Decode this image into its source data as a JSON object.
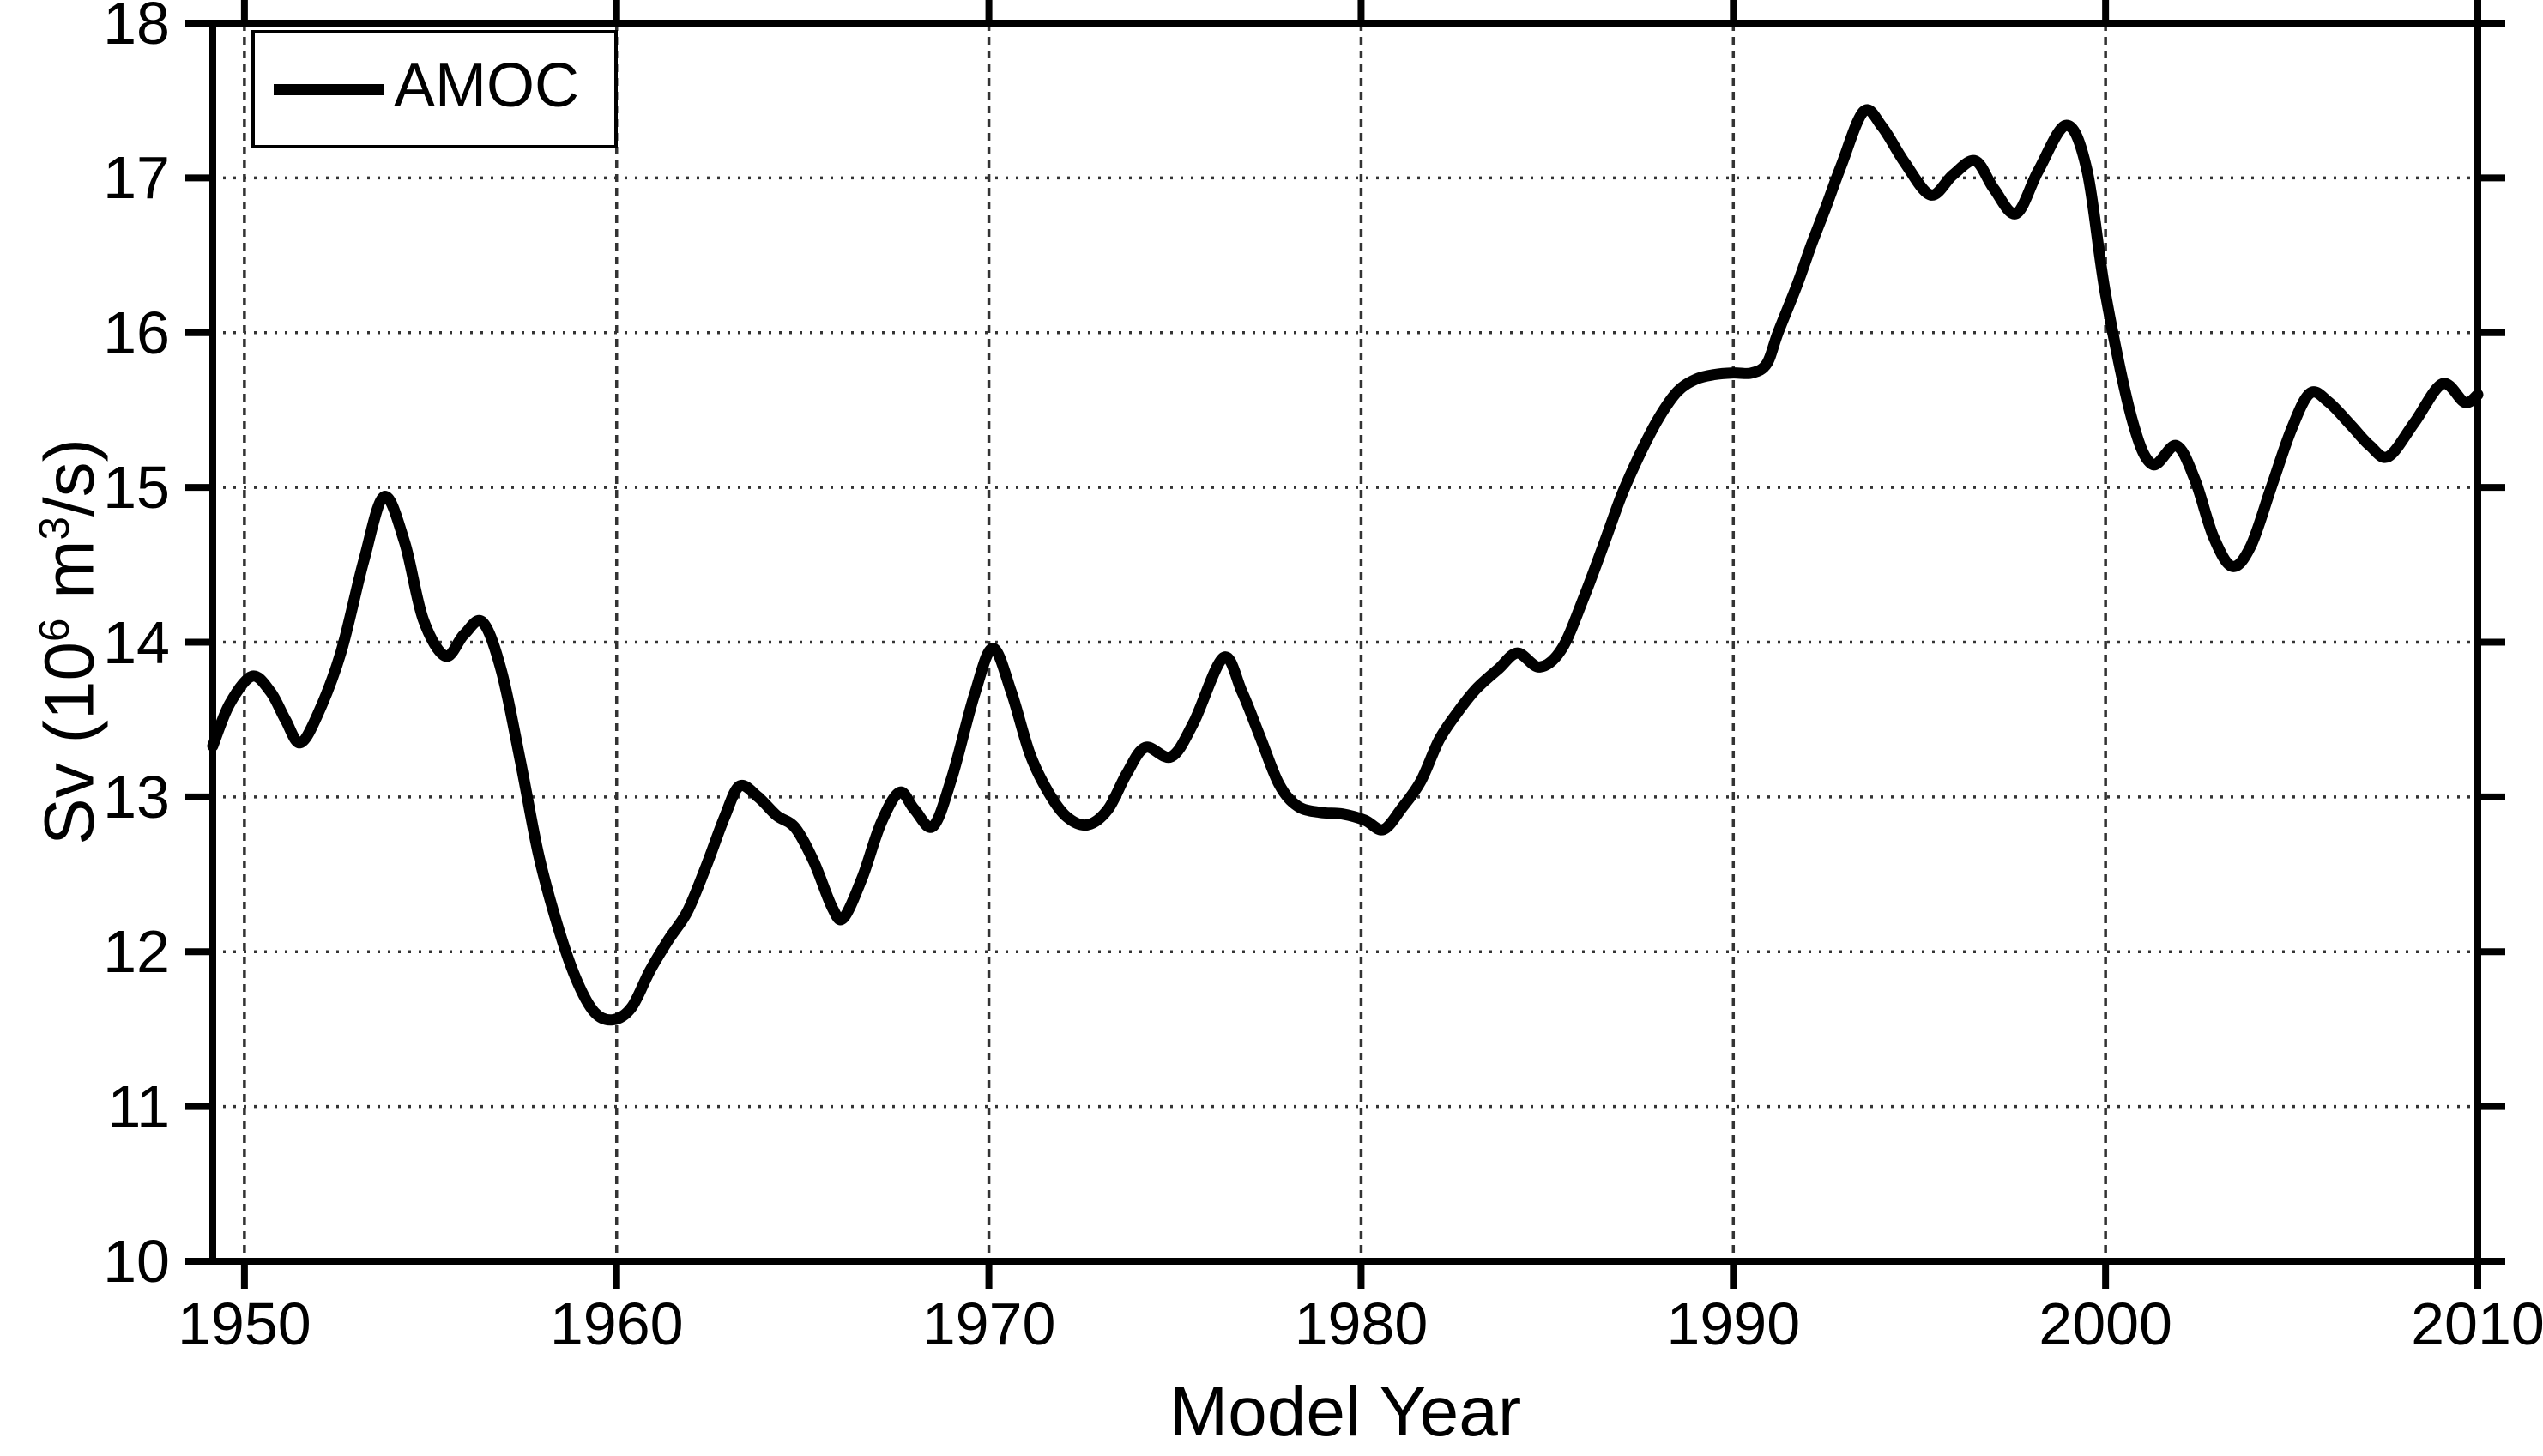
{
  "figure": {
    "background_color": "#ffffff",
    "line_color": "#000000",
    "grid_style": "dotted"
  },
  "legend": {
    "label": "AMOC",
    "position": "top-left"
  },
  "axes": {
    "xlabel": "Model Year",
    "ylabel_prefix": "Sv (10",
    "ylabel_sup1": "6",
    "ylabel_mid": " m",
    "ylabel_sup2": "3",
    "ylabel_suffix": "/s)"
  },
  "chart_data": {
    "type": "line",
    "title": "",
    "xlabel": "Model Year",
    "ylabel": "Sv (10^6 m^3/s)",
    "legend_entries": [
      "AMOC"
    ],
    "legend_position": "top-left",
    "grid": true,
    "xlim": [
      1949.15,
      2010
    ],
    "ylim": [
      10,
      18
    ],
    "xticks": [
      1950,
      1960,
      1970,
      1980,
      1990,
      2000,
      2010
    ],
    "xtick_labels": [
      "1950",
      "1960",
      "1970",
      "1980",
      "1990",
      "2000",
      "2010"
    ],
    "yticks": [
      10,
      11,
      12,
      13,
      14,
      15,
      16,
      17,
      18
    ],
    "ytick_labels": [
      "10",
      "11",
      "12",
      "13",
      "14",
      "15",
      "16",
      "17",
      "18"
    ],
    "series": [
      {
        "name": "AMOC",
        "color": "#000000",
        "x": [
          1949.15,
          1949.6,
          1950.2,
          1950.7,
          1951.1,
          1951.5,
          1952.0,
          1952.6,
          1953.2,
          1953.75,
          1954.3,
          1954.8,
          1955.4,
          1955.9,
          1956.4,
          1956.9,
          1957.4,
          1957.9,
          1958.4,
          1958.9,
          1959.4,
          1959.9,
          1960.4,
          1960.9,
          1961.4,
          1961.9,
          1962.4,
          1962.9,
          1963.3,
          1963.8,
          1964.3,
          1964.8,
          1965.3,
          1965.8,
          1966.1,
          1966.6,
          1967.1,
          1967.6,
          1968.0,
          1968.5,
          1969.0,
          1969.6,
          1970.1,
          1970.6,
          1971.1,
          1971.6,
          1972.1,
          1972.65,
          1973.2,
          1973.7,
          1974.2,
          1974.9,
          1975.5,
          1976.3,
          1976.8,
          1977.3,
          1977.8,
          1978.3,
          1978.9,
          1979.5,
          1980.1,
          1980.6,
          1981.1,
          1981.6,
          1982.1,
          1982.6,
          1983.1,
          1983.7,
          1984.2,
          1984.8,
          1985.4,
          1986.0,
          1986.5,
          1987.0,
          1987.5,
          1988.0,
          1988.5,
          1989.0,
          1989.5,
          1990.0,
          1990.5,
          1990.9,
          1991.2,
          1991.7,
          1992.1,
          1992.5,
          1992.9,
          1993.5,
          1994.0,
          1994.6,
          1995.3,
          1995.9,
          1996.5,
          1997.0,
          1997.6,
          1998.2,
          1998.95,
          1999.5,
          2000.0,
          2000.7,
          2001.25,
          2001.9,
          2002.4,
          2002.9,
          2003.4,
          2003.9,
          2004.45,
          2005.0,
          2005.5,
          2006.0,
          2006.6,
          2007.1,
          2007.6,
          2008.3,
          2009.05,
          2009.65,
          2010.0
        ],
        "y": [
          13.33,
          13.6,
          13.78,
          13.68,
          13.5,
          13.35,
          13.55,
          13.94,
          14.52,
          14.94,
          14.65,
          14.15,
          13.91,
          14.05,
          14.13,
          13.82,
          13.25,
          12.63,
          12.18,
          11.83,
          11.61,
          11.56,
          11.64,
          11.88,
          12.08,
          12.26,
          12.55,
          12.87,
          13.07,
          13.0,
          12.88,
          12.8,
          12.58,
          12.28,
          12.22,
          12.48,
          12.83,
          13.03,
          12.92,
          12.81,
          13.12,
          13.65,
          13.96,
          13.68,
          13.28,
          13.03,
          12.87,
          12.82,
          12.92,
          13.15,
          13.32,
          13.26,
          13.48,
          13.9,
          13.68,
          13.38,
          13.08,
          12.94,
          12.9,
          12.89,
          12.85,
          12.79,
          12.93,
          13.1,
          13.37,
          13.55,
          13.7,
          13.83,
          13.93,
          13.84,
          13.96,
          14.3,
          14.62,
          14.95,
          15.22,
          15.45,
          15.62,
          15.7,
          15.73,
          15.74,
          15.74,
          15.8,
          16.0,
          16.3,
          16.57,
          16.82,
          17.08,
          17.43,
          17.33,
          17.1,
          16.89,
          17.02,
          17.11,
          16.93,
          16.77,
          17.05,
          17.34,
          17.05,
          16.25,
          15.45,
          15.15,
          15.27,
          15.05,
          14.68,
          14.49,
          14.62,
          15.0,
          15.38,
          15.61,
          15.55,
          15.4,
          15.27,
          15.2,
          15.42,
          15.67,
          15.55,
          15.6
        ]
      }
    ]
  }
}
